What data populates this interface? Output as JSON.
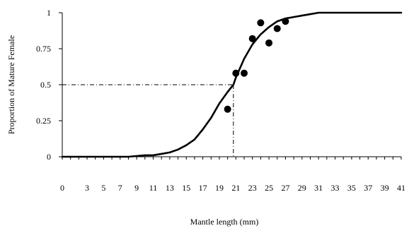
{
  "chart_data": {
    "type": "scatter",
    "title": "",
    "xlabel": "Mantle length (mm)",
    "ylabel": "Proportion of Mature Female",
    "xlim": [
      0,
      41
    ],
    "ylim": [
      0,
      1
    ],
    "x_ticks": [
      0,
      3,
      5,
      7,
      9,
      11,
      13,
      15,
      17,
      19,
      21,
      23,
      25,
      27,
      29,
      31,
      33,
      35,
      37,
      39,
      41
    ],
    "x_tick_labels": [
      "0",
      "3",
      "5",
      "7",
      "9",
      "11",
      "13",
      "15",
      "17",
      "19",
      "21",
      "23",
      "25",
      "27",
      "29",
      "31",
      "33",
      "35",
      "37",
      "39",
      "41"
    ],
    "y_ticks": [
      0,
      0.25,
      0.5,
      0.75,
      1
    ],
    "y_tick_labels": [
      "0",
      "0.25",
      "0.5",
      "0.75",
      "1"
    ],
    "grid": false,
    "legend": "none",
    "observed_points": {
      "x": [
        20,
        21,
        22,
        23,
        24,
        25,
        26,
        27
      ],
      "y": [
        0.33,
        0.58,
        0.58,
        0.82,
        0.93,
        0.79,
        0.89,
        0.94
      ]
    },
    "fitted_curve": {
      "x": [
        0,
        2,
        4,
        6,
        8,
        10,
        11,
        12,
        13,
        14,
        15,
        16,
        17,
        18,
        19,
        20,
        20.7,
        21,
        22,
        23,
        24,
        25,
        26,
        27,
        28,
        29,
        30,
        31,
        32,
        33,
        34,
        35,
        37,
        39,
        41
      ],
      "y": [
        0.0,
        0.0,
        0.0,
        0.0,
        0.0,
        0.01,
        0.01,
        0.02,
        0.03,
        0.05,
        0.08,
        0.12,
        0.19,
        0.27,
        0.37,
        0.45,
        0.5,
        0.55,
        0.68,
        0.78,
        0.85,
        0.9,
        0.94,
        0.96,
        0.97,
        0.98,
        0.99,
        1.0,
        1.0,
        1.0,
        1.0,
        1.0,
        1.0,
        1.0,
        1.0
      ]
    },
    "reference_line": {
      "y": 0.5,
      "x": 20.7
    },
    "colors": {
      "axis": "#000000",
      "curve": "#000000",
      "points": "#000000",
      "reference": "#000000"
    }
  }
}
